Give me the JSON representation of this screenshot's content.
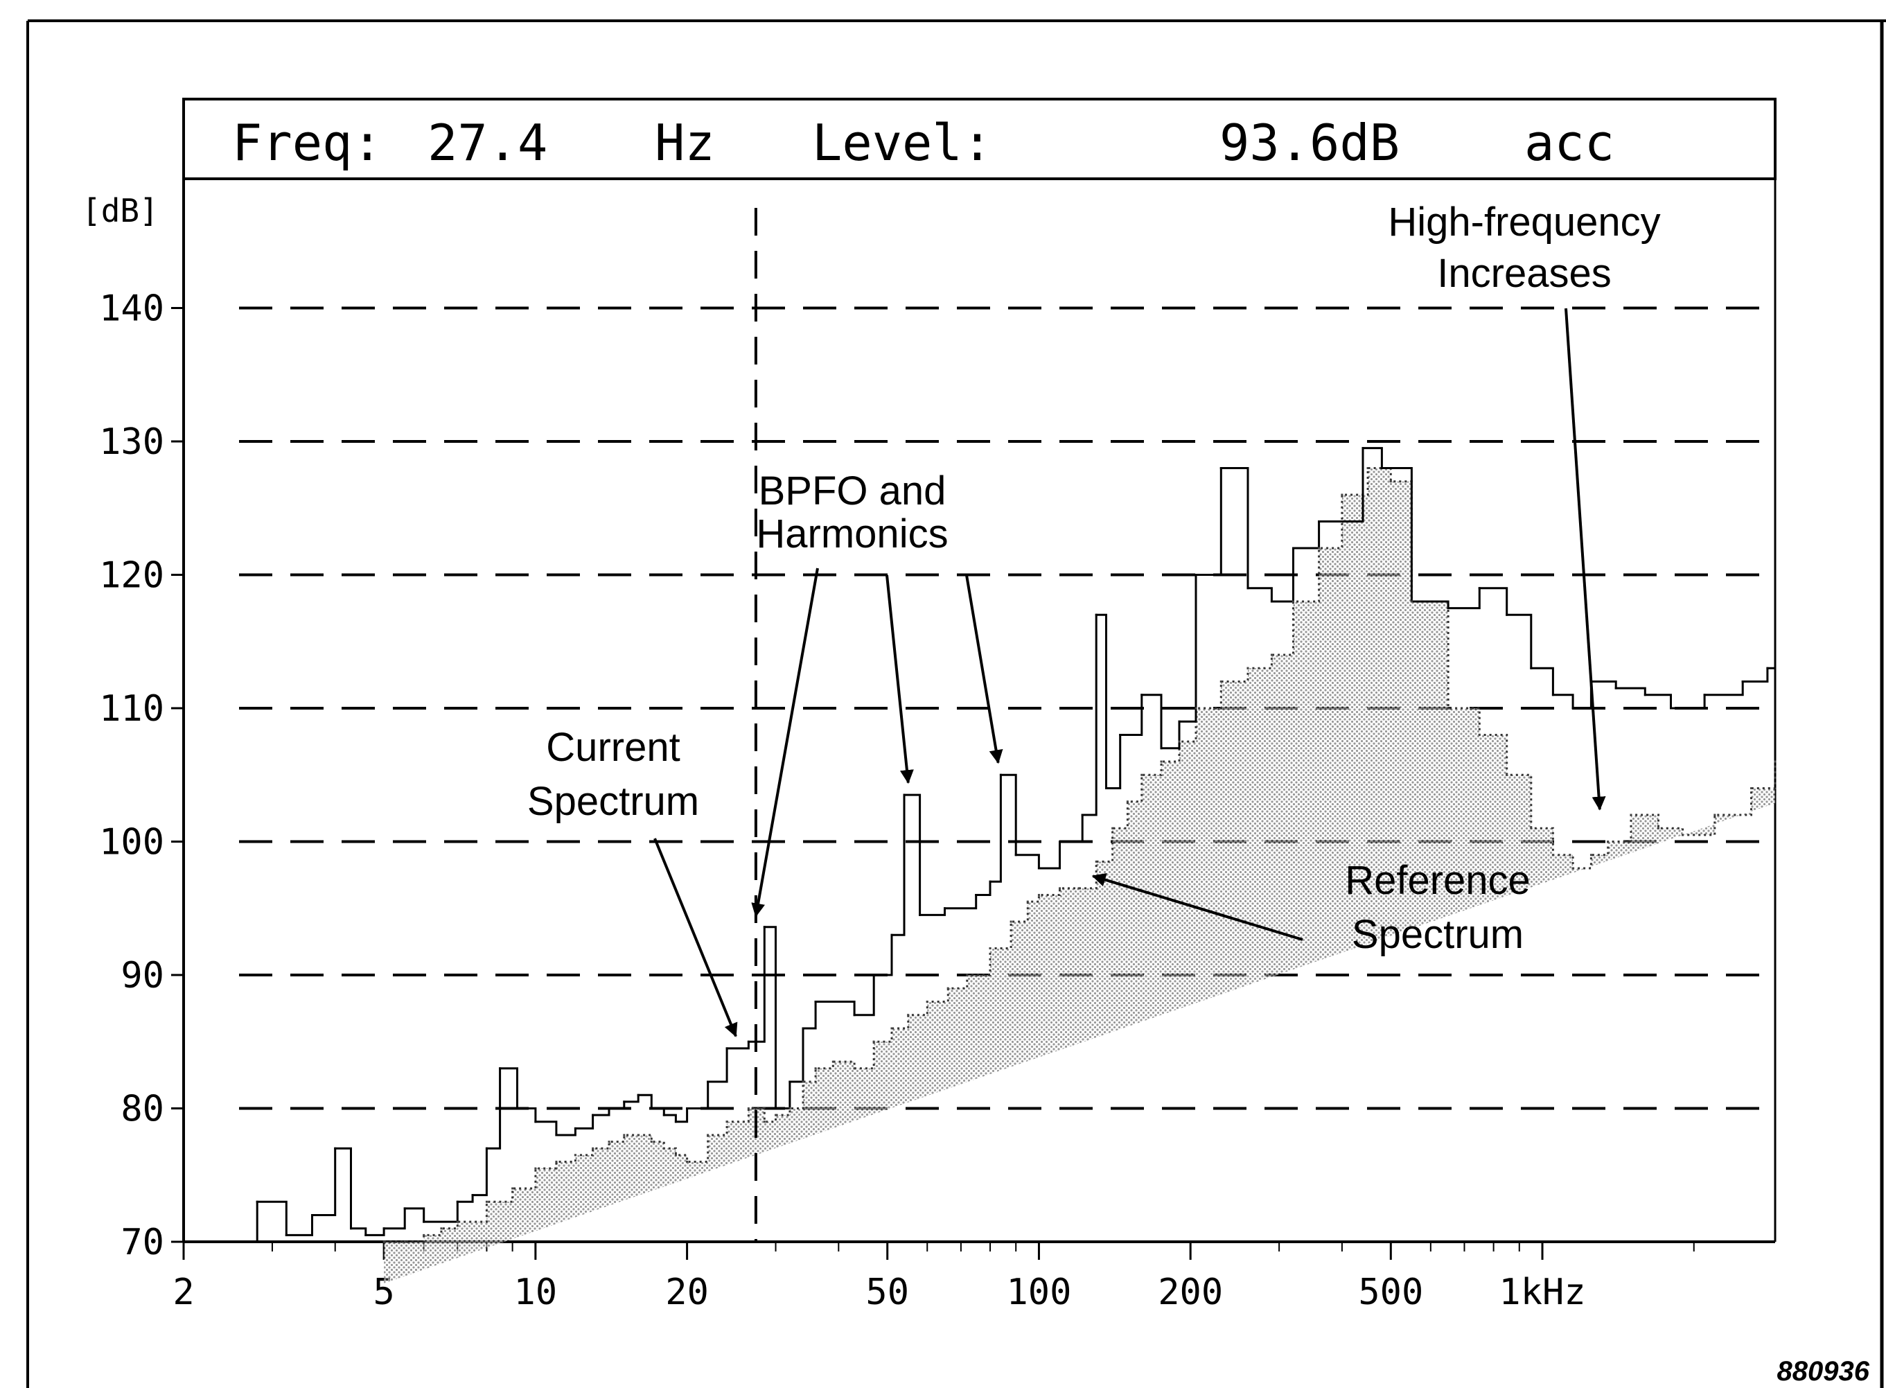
{
  "readout": {
    "freq_label": "Freq:",
    "freq_value": "27.4",
    "freq_unit": "Hz",
    "level_label": "Level:",
    "level_value": "93.6dB",
    "level_mode": "acc"
  },
  "figure_id": "880936",
  "chart_data": {
    "type": "line",
    "x_scale": "log",
    "xlim": [
      2,
      2900
    ],
    "ylim": [
      70,
      150
    ],
    "ylabel": "[dB]",
    "xlabel": "",
    "grid": "horizontal dashed",
    "cursor_x": 27.4,
    "x_ticks": [
      {
        "value": 2,
        "label": "2"
      },
      {
        "value": 5,
        "label": "5"
      },
      {
        "value": 10,
        "label": "10"
      },
      {
        "value": 20,
        "label": "20"
      },
      {
        "value": 50,
        "label": "50"
      },
      {
        "value": 100,
        "label": "100"
      },
      {
        "value": 200,
        "label": "200"
      },
      {
        "value": 500,
        "label": "500"
      },
      {
        "value": 1000,
        "label": "1kHz"
      }
    ],
    "y_ticks": [
      {
        "value": 70,
        "label": "70"
      },
      {
        "value": 80,
        "label": "80"
      },
      {
        "value": 90,
        "label": "90"
      },
      {
        "value": 100,
        "label": "100"
      },
      {
        "value": 110,
        "label": "110"
      },
      {
        "value": 120,
        "label": "120"
      },
      {
        "value": 130,
        "label": "130"
      },
      {
        "value": 140,
        "label": "140"
      }
    ],
    "series": [
      {
        "role": "current",
        "style": "solid",
        "x": [
          2,
          2.8,
          3.2,
          3.6,
          4.0,
          4.3,
          4.6,
          5.0,
          5.5,
          6.0,
          7.0,
          7.5,
          8.0,
          8.5,
          9.2,
          10.0,
          11.0,
          12.0,
          13.0,
          14.0,
          15.0,
          16.0,
          17.0,
          18.0,
          19.0,
          20.0,
          22.0,
          24.0,
          26.5,
          28.5,
          30.0,
          32.0,
          34.0,
          36.0,
          39.0,
          43.0,
          47.0,
          51.0,
          54.0,
          58.0,
          65.0,
          75.0,
          80.0,
          84.0,
          90.0,
          100.0,
          110.0,
          122.0,
          130.0,
          136.0,
          145.0,
          160.0,
          175.0,
          190.0,
          205.0,
          230.0,
          260.0,
          290.0,
          320.0,
          360.0,
          400.0,
          440.0,
          480.0,
          550.0,
          650.0,
          750.0,
          850.0,
          950.0,
          1050.0,
          1150.0,
          1250.0,
          1400.0,
          1600.0,
          1800.0,
          2100.0,
          2500.0,
          2800.0
        ],
        "y": [
          70,
          73,
          70.5,
          72,
          77,
          71,
          70.5,
          71,
          72.5,
          71.5,
          73,
          73.5,
          77,
          83,
          80,
          79,
          78,
          78.5,
          79.5,
          80,
          80.5,
          81,
          80,
          79.5,
          79,
          80,
          82,
          84.5,
          85,
          93.6,
          80,
          82,
          86,
          88,
          88,
          87,
          90,
          93,
          103.5,
          94.5,
          95,
          96,
          97,
          105,
          99,
          98,
          100,
          102,
          117,
          104,
          108,
          111,
          107,
          109,
          120,
          128,
          119,
          118,
          122,
          124,
          124,
          129.5,
          128,
          118,
          117.5,
          119,
          117,
          113,
          111,
          110,
          112,
          111.5,
          111,
          110,
          111,
          112,
          113
        ]
      },
      {
        "role": "reference",
        "style": "dotted",
        "x": [
          5.0,
          5.5,
          6.0,
          6.5,
          7.0,
          8.0,
          9.0,
          10.0,
          11.0,
          12.0,
          13.0,
          14.0,
          15.0,
          16.0,
          17.0,
          18.0,
          19.0,
          20.0,
          22.0,
          24.0,
          26.5,
          28.5,
          30.0,
          32.0,
          34.0,
          36.0,
          39.0,
          43.0,
          47.0,
          51.0,
          55.0,
          60.0,
          66.0,
          72.0,
          80.0,
          88.0,
          95.0,
          100.0,
          110.0,
          120.0,
          130.0,
          140.0,
          150.0,
          160.0,
          175.0,
          190.0,
          205.0,
          230.0,
          260.0,
          290.0,
          320.0,
          360.0,
          400.0,
          450.0,
          500.0,
          550.0,
          650.0,
          750.0,
          850.0,
          950.0,
          1050.0,
          1150.0,
          1250.0,
          1350.0,
          1500.0,
          1700.0,
          1900.0,
          2200.0,
          2600.0,
          2900.0
        ],
        "y": [
          70,
          70,
          70.5,
          71,
          71.5,
          73,
          74,
          75.5,
          76,
          76.5,
          77,
          77.5,
          78,
          78,
          77.5,
          77,
          76.5,
          76,
          78,
          79,
          80,
          79,
          79.5,
          80,
          82,
          83,
          83.5,
          83,
          85,
          86,
          87,
          88,
          89,
          90,
          92,
          94,
          95.5,
          96,
          96.5,
          96.5,
          98.5,
          101,
          103,
          105,
          106,
          107.5,
          110,
          112,
          113,
          114,
          118,
          122,
          126,
          128,
          127,
          118,
          110,
          108,
          105,
          101,
          99,
          98,
          99,
          100,
          102,
          101,
          100.5,
          102,
          104,
          106
        ]
      }
    ],
    "annotations": [
      {
        "id": "current",
        "text": [
          "Current",
          "Spectrum"
        ],
        "target_x": 25,
        "target_y": 85
      },
      {
        "id": "bpfo",
        "text": [
          "BPFO and",
          "Harmonics"
        ],
        "targets": [
          {
            "x": 27.4,
            "y": 94
          },
          {
            "x": 55,
            "y": 104
          },
          {
            "x": 83,
            "y": 105.5
          }
        ]
      },
      {
        "id": "highfreq",
        "text": [
          "High-frequency",
          "Increases"
        ],
        "target_x": 1300,
        "target_y": 102
      },
      {
        "id": "reference",
        "text": [
          "Reference",
          "Spectrum"
        ],
        "target_x": 128,
        "target_y": 97
      }
    ]
  }
}
